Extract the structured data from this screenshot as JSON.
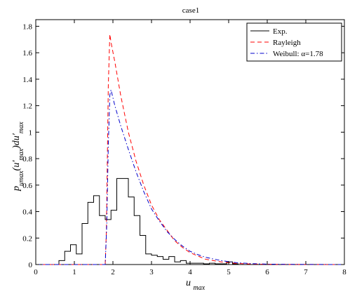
{
  "chart_data": {
    "type": "line",
    "title": "case1",
    "xlabel": {
      "main": "u",
      "sub": "max"
    },
    "ylabel": {
      "parts": [
        {
          "text": "p",
          "sub": false
        },
        {
          "text": "u",
          "sub": true
        },
        {
          "text": "max",
          "sub": true
        },
        {
          "text": "(u",
          "sub": false
        },
        {
          "text": "′",
          "sub": false
        },
        {
          "text": "max",
          "sub": true
        },
        {
          "text": ")du",
          "sub": false
        },
        {
          "text": "′",
          "sub": false
        },
        {
          "text": "max",
          "sub": true
        }
      ]
    },
    "xlim": [
      0,
      8
    ],
    "ylim": [
      0,
      1.85
    ],
    "xticks": [
      "0",
      "1",
      "2",
      "3",
      "4",
      "5",
      "6",
      "7",
      "8"
    ],
    "yticks": [
      "0",
      "0.2",
      "0.4",
      "0.6",
      "0.8",
      "1",
      "1.2",
      "1.4",
      "1.6",
      "1.8"
    ],
    "grid": false,
    "legend_position": "top-right",
    "series": [
      {
        "name": "Exp.",
        "style": "histogram",
        "color": "#000000",
        "dash": "",
        "bin_edges": [
          0.6,
          0.75,
          0.9,
          1.05,
          1.2,
          1.35,
          1.5,
          1.65,
          1.8,
          1.95,
          2.1,
          2.25,
          2.4,
          2.55,
          2.7,
          2.85,
          3.0,
          3.15,
          3.3,
          3.45,
          3.6,
          3.75,
          3.9,
          4.05,
          4.2,
          4.35,
          4.5,
          4.65,
          4.8,
          4.95,
          5.1,
          5.25
        ],
        "values": [
          0.03,
          0.1,
          0.15,
          0.08,
          0.31,
          0.47,
          0.52,
          0.37,
          0.34,
          0.41,
          0.65,
          0.65,
          0.51,
          0.37,
          0.22,
          0.08,
          0.07,
          0.06,
          0.04,
          0.06,
          0.02,
          0.03,
          0.01,
          0.01,
          0.01,
          0.005,
          0.01,
          0.005,
          0.005,
          0.02,
          0.005
        ]
      },
      {
        "name": "Rayleigh",
        "style": "line",
        "color": "#ff0000",
        "dash": "6,4",
        "x": [
          0,
          1.8,
          1.83,
          1.86,
          1.88,
          1.92,
          1.95,
          2.05,
          2.2,
          2.4,
          2.6,
          2.8,
          3.0,
          3.2,
          3.4,
          3.6,
          3.8,
          4.0,
          4.4,
          4.8,
          5.2,
          5.6,
          6.0,
          6.5,
          7.0,
          8.0
        ],
        "y": [
          0,
          0,
          0.25,
          0.9,
          1.35,
          1.74,
          1.68,
          1.53,
          1.28,
          1.0,
          0.78,
          0.6,
          0.45,
          0.34,
          0.26,
          0.18,
          0.13,
          0.09,
          0.04,
          0.02,
          0.008,
          0.004,
          0.002,
          0.001,
          0.0005,
          0
        ]
      },
      {
        "name": "Weibull: α=1.78",
        "style": "line",
        "color": "#0000cc",
        "dash": "6,3,1.5,3",
        "x": [
          0,
          1.8,
          1.84,
          1.88,
          1.92,
          1.95,
          2.05,
          2.2,
          2.4,
          2.6,
          2.8,
          3.0,
          3.2,
          3.4,
          3.6,
          3.8,
          4.0,
          4.2,
          4.4,
          4.8,
          5.2,
          5.6,
          6.0,
          6.5,
          7.0,
          8.0
        ],
        "y": [
          0,
          0,
          0.3,
          0.9,
          1.28,
          1.32,
          1.2,
          1.05,
          0.87,
          0.7,
          0.55,
          0.42,
          0.33,
          0.25,
          0.19,
          0.14,
          0.1,
          0.075,
          0.055,
          0.03,
          0.014,
          0.007,
          0.003,
          0.0015,
          0.0008,
          0
        ]
      }
    ]
  }
}
